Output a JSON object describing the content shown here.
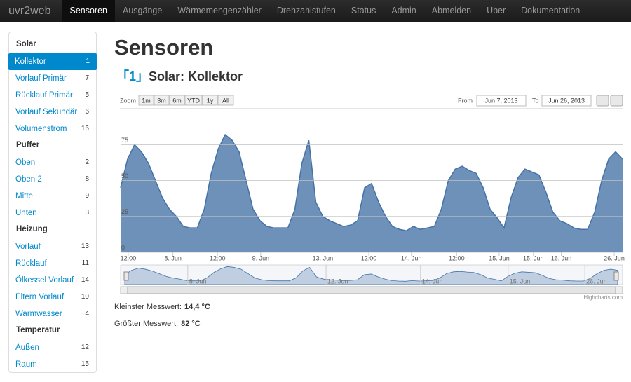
{
  "nav": {
    "brand": "uvr2web",
    "items": [
      "Sensoren",
      "Ausgänge",
      "Wärmemengenzähler",
      "Drehzahlstufen",
      "Status",
      "Admin",
      "Abmelden",
      "Über",
      "Dokumentation"
    ],
    "active": 0
  },
  "sidebar": {
    "groups": [
      {
        "title": "Solar",
        "items": [
          {
            "label": "Kollektor",
            "id": "1"
          },
          {
            "label": "Vorlauf Primär",
            "id": "7"
          },
          {
            "label": "Rücklauf Primär",
            "id": "5"
          },
          {
            "label": "Vorlauf Sekundär",
            "id": "6"
          },
          {
            "label": "Volumenstrom",
            "id": "16"
          }
        ]
      },
      {
        "title": "Puffer",
        "items": [
          {
            "label": "Oben",
            "id": "2"
          },
          {
            "label": "Oben 2",
            "id": "8"
          },
          {
            "label": "Mitte",
            "id": "9"
          },
          {
            "label": "Unten",
            "id": "3"
          }
        ]
      },
      {
        "title": "Heizung",
        "items": [
          {
            "label": "Vorlauf",
            "id": "13"
          },
          {
            "label": "Rücklauf",
            "id": "11"
          },
          {
            "label": "Ölkessel Vorlauf",
            "id": "14"
          },
          {
            "label": "Eltern Vorlauf",
            "id": "10"
          },
          {
            "label": "Warmwasser",
            "id": "4"
          }
        ]
      },
      {
        "title": "Temperatur",
        "items": [
          {
            "label": "Außen",
            "id": "12"
          },
          {
            "label": "Raum",
            "id": "15"
          }
        ]
      }
    ]
  },
  "main": {
    "title": "Sensoren",
    "sensor_number": "1",
    "sensor_name": "Solar: Kollektor",
    "range_selector": {
      "zoom_label": "Zoom",
      "buttons": [
        "1m",
        "3m",
        "6m",
        "YTD",
        "1y",
        "All"
      ],
      "from_label": "From",
      "from": "Jun 7, 2013",
      "to_label": "To",
      "to": "Jun 26, 2013"
    },
    "credit": "Highcharts.com",
    "stats": [
      {
        "label": "Kleinster Messwert:",
        "value": "14,4 °C"
      },
      {
        "label": "Größter Messwert:",
        "value": "82 °C"
      }
    ]
  },
  "chart_data": {
    "type": "area",
    "color": "#4572a7",
    "values": [
      45,
      65,
      75,
      70,
      62,
      50,
      38,
      30,
      25,
      18,
      17,
      17,
      30,
      55,
      72,
      82,
      78,
      70,
      50,
      30,
      22,
      18,
      17,
      17,
      17,
      30,
      62,
      78,
      35,
      25,
      22,
      20,
      18,
      19,
      22,
      45,
      48,
      35,
      25,
      18,
      16,
      15,
      18,
      16,
      17,
      18,
      30,
      50,
      58,
      60,
      57,
      55,
      45,
      30,
      24,
      17,
      38,
      52,
      58,
      56,
      54,
      42,
      28,
      22,
      20,
      17,
      16,
      16,
      28,
      50,
      65,
      70,
      65
    ],
    "ylim": [
      0,
      83
    ],
    "yticks": [
      0,
      25,
      50,
      75
    ],
    "grid": true,
    "xticks": [
      {
        "value": 1.1,
        "label": "12:00"
      },
      {
        "value": 7.5,
        "label": "8. Jun"
      },
      {
        "value": 13.9,
        "label": "12:00"
      },
      {
        "value": 20.1,
        "label": "9. Jun"
      },
      {
        "value": 29.0,
        "label": "13. Jun"
      },
      {
        "value": 35.6,
        "label": "12:00"
      },
      {
        "value": 41.7,
        "label": "14. Jun"
      },
      {
        "value": 48.2,
        "label": "12:00"
      },
      {
        "value": 54.3,
        "label": "15. Jun"
      },
      {
        "value": 59.2,
        "label": "15. Jun"
      },
      {
        "value": 63.2,
        "label": "16. Jun"
      },
      {
        "value": 70.8,
        "label": "26. Jun"
      }
    ],
    "navigator_ticks": [
      {
        "value": 9.2,
        "label": "8. Jun"
      },
      {
        "value": 29.4,
        "label": "12. Jun"
      },
      {
        "value": 43.2,
        "label": "14. Jun"
      },
      {
        "value": 56.0,
        "label": "15. Jun"
      },
      {
        "value": 67.2,
        "label": "26. Jun"
      }
    ]
  }
}
